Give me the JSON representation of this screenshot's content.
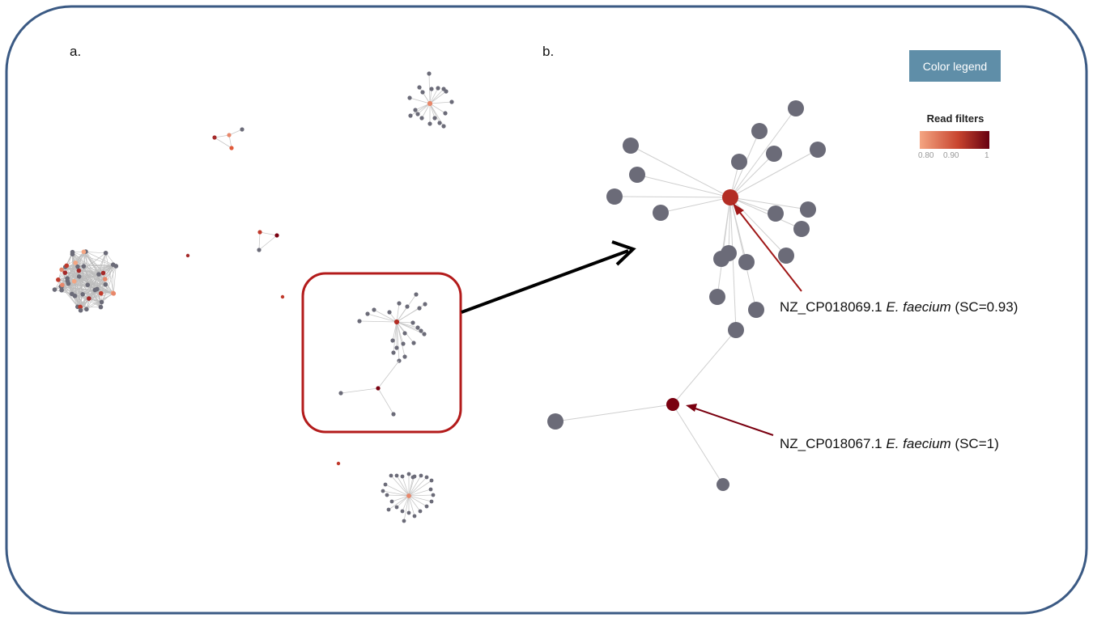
{
  "panels": {
    "a": "a.",
    "b": "b."
  },
  "legend": {
    "button_label": "Color legend",
    "title": "Read filters",
    "ticks": [
      "0.80",
      "0.90",
      "1"
    ],
    "gradient": [
      "#f4a582",
      "#c8452f",
      "#670010"
    ]
  },
  "annotations": [
    {
      "accession": "NZ_CP018069.1",
      "species": "E. faecium",
      "score": "(SC=0.93)",
      "color": "#b32d24"
    },
    {
      "accession": "NZ_CP018067.1",
      "species": "E. faecium",
      "score": "(SC=1)",
      "color": "#7a0010"
    }
  ],
  "colors": {
    "node_gray": "#6b6b78",
    "edge": "#c8c8c8",
    "frame": "#3b5a84",
    "highlight_box": "#b31b1b"
  }
}
